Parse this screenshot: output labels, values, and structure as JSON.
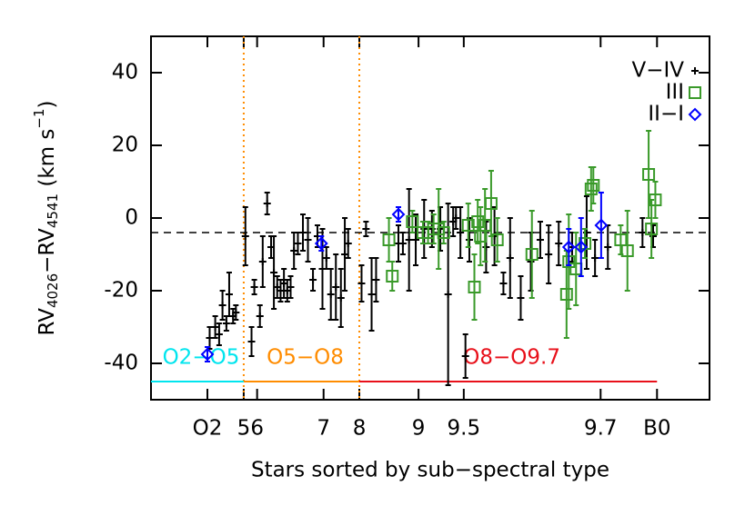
{
  "chart_data": {
    "type": "scatter",
    "ylabel_parts": [
      "RV",
      "4026",
      "−RV",
      "4541",
      " (km s",
      "−1",
      ")"
    ],
    "xlabel": "Stars sorted by sub−spectral type",
    "xlim": [
      0,
      100
    ],
    "ylim": [
      -50,
      50
    ],
    "yticks": [
      -40,
      -20,
      0,
      20,
      40
    ],
    "xticks": [
      {
        "value": 10.1,
        "label": "O2"
      },
      {
        "value": 16.6,
        "label": "5"
      },
      {
        "value": 19.0,
        "label": "6"
      },
      {
        "value": 30.9,
        "label": "7"
      },
      {
        "value": 37.3,
        "label": "8"
      },
      {
        "value": 47.9,
        "label": "9"
      },
      {
        "value": 56.0,
        "label": "9.5"
      },
      {
        "value": 80.5,
        "label": "9.7"
      },
      {
        "value": 90.6,
        "label": "B0"
      }
    ],
    "vlines": [
      16.6,
      37.3
    ],
    "vline_color": "#ff8c00",
    "hline": -4,
    "region_y": -45,
    "region_label_y": -38.5,
    "regions": [
      {
        "label": "O2−O5",
        "color": "#00e5ee",
        "x": [
          0,
          16.6
        ]
      },
      {
        "label": "O5−O8",
        "color": "#ff8c00",
        "x": [
          16.6,
          37.3
        ]
      },
      {
        "label": "O8−O9.7",
        "color": "#e8101a",
        "x": [
          37.3,
          90.6
        ]
      }
    ],
    "series": [
      {
        "name": "V−IV",
        "color": "#000000",
        "marker": "plus",
        "x": [
          10.5,
          11.5,
          12.2,
          12.8,
          13.5,
          14.0,
          14.7,
          15.2,
          16.9,
          18.0,
          18.5,
          19.5,
          20.0,
          20.8,
          21.5,
          22.0,
          22.6,
          23.2,
          23.8,
          24.4,
          25.0,
          25.6,
          26.3,
          27.2,
          28.1,
          29.0,
          29.8,
          30.7,
          31.4,
          32.2,
          33.1,
          34.0,
          34.7,
          35.3,
          37.7,
          38.5,
          39.5,
          40.3,
          44.3,
          45.1,
          46.2,
          47.4,
          48.9,
          50.3,
          51.8,
          53.2,
          54.1,
          54.6,
          55.4,
          56.3,
          57.0,
          60.0,
          61.5,
          63.1,
          64.3,
          66.2,
          68.0,
          69.7,
          71.2,
          73.0,
          75.4,
          78.0,
          79.5,
          81.8,
          88.0,
          89.9
        ],
        "values": [
          -33,
          -30,
          -32,
          -24,
          -29,
          -21,
          -27,
          -26,
          -5,
          -34,
          -19,
          -27,
          -12,
          4,
          -8,
          -15,
          -19,
          -20,
          -18,
          -20,
          -19,
          -9,
          -7,
          -4,
          -6,
          -17,
          -5,
          -14,
          -11,
          -21,
          -19,
          -22,
          -10,
          -7,
          -18,
          -3,
          -21,
          -17,
          -7,
          -7,
          -6,
          -6,
          -3,
          -3,
          -3,
          -21,
          -1,
          0,
          -4,
          -38,
          -6,
          -8,
          -5,
          -18,
          -11,
          -22,
          -12,
          -6,
          -10,
          -7,
          -8,
          -4,
          -11,
          -8,
          -4,
          -5
        ],
        "errors": [
          3,
          3,
          3,
          4,
          2,
          6,
          2,
          2,
          8,
          4,
          2,
          3,
          7,
          3,
          3,
          10,
          3,
          3,
          4,
          3,
          3,
          5,
          3,
          5,
          6,
          3,
          3,
          11,
          3,
          7,
          9,
          8,
          10,
          4,
          5,
          2,
          10,
          6,
          5,
          3,
          14,
          7,
          8,
          5,
          6,
          25,
          4,
          3,
          7,
          6,
          6,
          7,
          8,
          3,
          11,
          6,
          8,
          5,
          8,
          6,
          4,
          10,
          5,
          6,
          4,
          3
        ]
      },
      {
        "name": "III",
        "color": "#3a9a2a",
        "marker": "square",
        "x": [
          42.6,
          43.2,
          46.8,
          48.7,
          49.6,
          50.6,
          51.5,
          52.4,
          56.8,
          57.9,
          58.5,
          59.0,
          59.8,
          60.9,
          62.0,
          68.2,
          74.4,
          74.8,
          76.1,
          77.7,
          78.8,
          79.2,
          84.1,
          85.3,
          89.1,
          89.6,
          90.3
        ],
        "values": [
          -6,
          -16,
          -1,
          -4,
          -4,
          -3,
          -3,
          -4,
          -2,
          -19,
          -1,
          -5,
          -2,
          4,
          -6,
          -10,
          -21,
          -12,
          -14,
          -7,
          8,
          9,
          -6,
          -9,
          12,
          -3,
          5
        ],
        "errors": [
          6,
          4,
          3,
          3,
          3,
          4,
          11,
          3,
          6,
          9,
          6,
          8,
          10,
          9,
          6,
          12,
          12,
          13,
          10,
          4,
          6,
          5,
          4,
          11,
          12,
          8,
          5
        ]
      },
      {
        "name": "II−I",
        "color": "#0000ff",
        "marker": "diamond",
        "x": [
          10.1,
          30.5,
          44.3,
          74.8,
          77.0,
          80.6
        ],
        "values": [
          -37.5,
          -7,
          1,
          -8,
          -8,
          -2
        ],
        "errors": [
          2,
          2,
          2,
          5,
          8,
          9
        ]
      }
    ]
  }
}
